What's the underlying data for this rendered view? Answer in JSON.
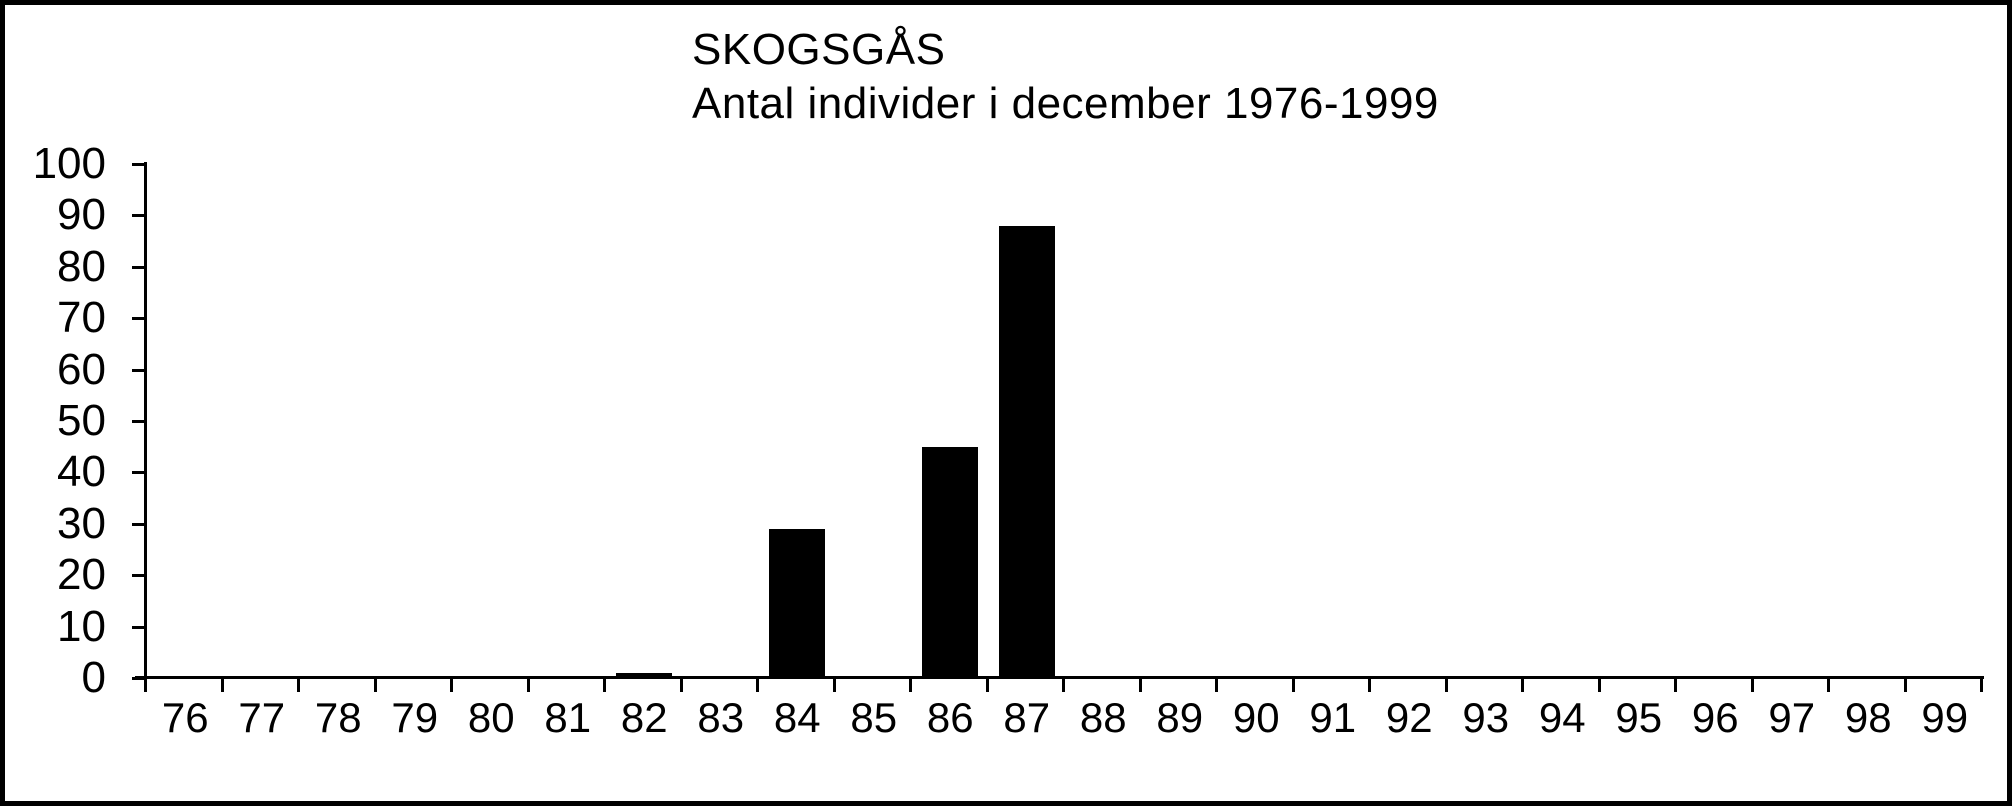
{
  "chart_data": {
    "type": "bar",
    "title": "SKOGSGÅS",
    "subtitle": "Antal individer i december 1976-1999",
    "categories": [
      "76",
      "77",
      "78",
      "79",
      "80",
      "81",
      "82",
      "83",
      "84",
      "85",
      "86",
      "87",
      "88",
      "89",
      "90",
      "91",
      "92",
      "93",
      "94",
      "95",
      "96",
      "97",
      "98",
      "99"
    ],
    "values": [
      0,
      0,
      0,
      0,
      0,
      0,
      1,
      0,
      29,
      0,
      45,
      88,
      0,
      0,
      0,
      0,
      0,
      0,
      0,
      0,
      0,
      0,
      0,
      0
    ],
    "xlabel": "",
    "ylabel": "",
    "ylim": [
      0,
      100
    ],
    "y_ticks": [
      0,
      10,
      20,
      30,
      40,
      50,
      60,
      70,
      80,
      90,
      100
    ],
    "grid": false,
    "legend_position": "none",
    "bar_color": "#000000"
  },
  "colors": {
    "background": "#ffffff",
    "border": "#000000",
    "text": "#000000"
  }
}
